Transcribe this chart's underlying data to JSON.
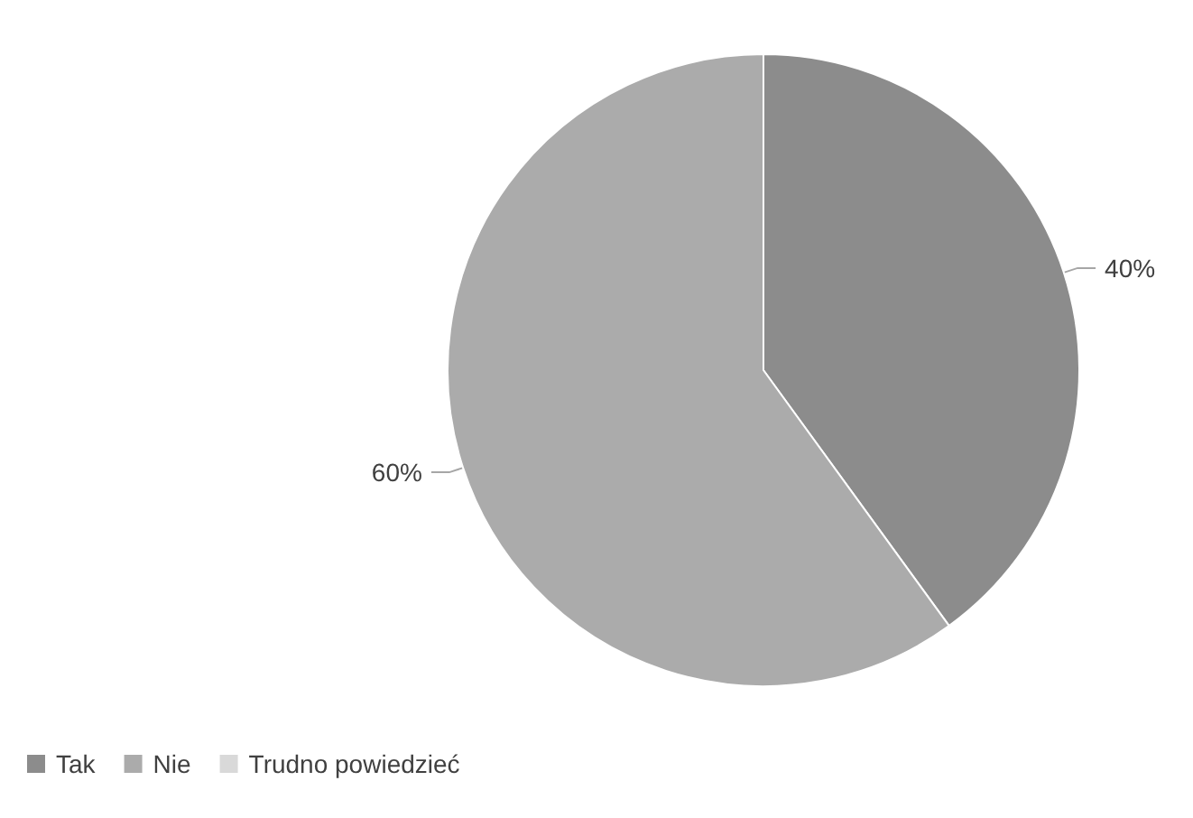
{
  "chart_data": {
    "type": "pie",
    "categories": [
      "Tak",
      "Nie",
      "Trudno powiedzieć"
    ],
    "values": [
      40,
      60,
      null
    ],
    "value_labels": [
      "40%",
      "60%",
      null
    ],
    "colors": [
      "#8c8c8c",
      "#ababab",
      "#d9d9d9"
    ],
    "legend": "bottom left"
  }
}
